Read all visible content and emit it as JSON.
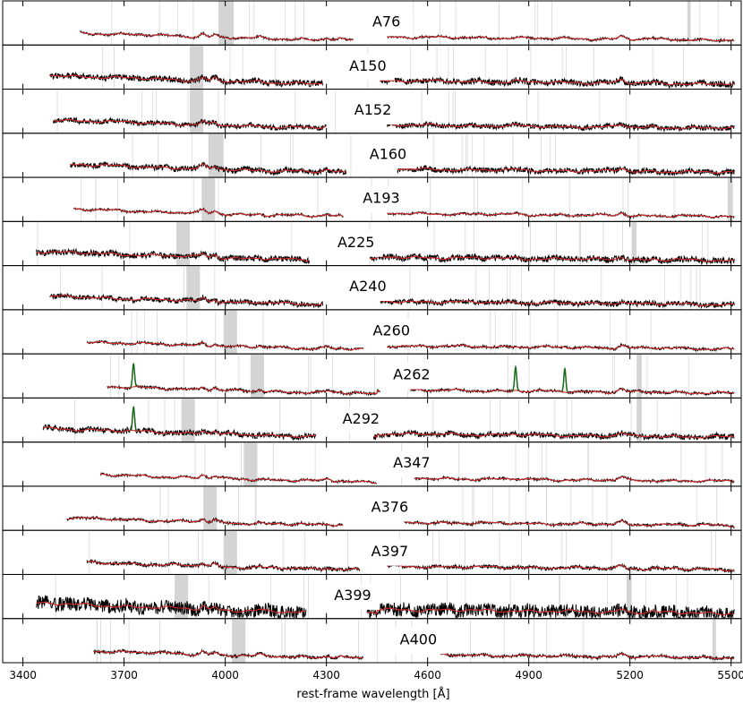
{
  "chart_data": {
    "type": "line",
    "xlabel": "rest-frame wavelength [Å]",
    "xlim": [
      3340,
      5530
    ],
    "x_ticks": [
      3400,
      3700,
      4000,
      4300,
      4600,
      4900,
      5200,
      5500
    ],
    "x_tick_labels": [
      "3400",
      "3700",
      "4000",
      "4300",
      "4600",
      "4900",
      "5200",
      "5500"
    ],
    "grid": false,
    "colors": {
      "spectrum": "#000000",
      "model": "#d62728",
      "emission": "#1a6b1a",
      "mask": "#bdbdbd"
    },
    "series": [
      {
        "name": "A76",
        "blue_range": [
          3570,
          4380
        ],
        "red_range": [
          4480,
          5510
        ],
        "noise": 0.15,
        "masks": [
          [
            3980,
            4025
          ],
          [
            5370,
            5380
          ]
        ],
        "emission": []
      },
      {
        "name": "A150",
        "blue_range": [
          3480,
          4290
        ],
        "red_range": [
          4460,
          5510
        ],
        "noise": 0.55,
        "masks": [
          [
            3895,
            3935
          ]
        ],
        "emission": []
      },
      {
        "name": "A152",
        "blue_range": [
          3490,
          4300
        ],
        "red_range": [
          4480,
          5510
        ],
        "noise": 0.45,
        "masks": [
          [
            3895,
            3935
          ]
        ],
        "emission": []
      },
      {
        "name": "A160",
        "blue_range": [
          3540,
          4360
        ],
        "red_range": [
          4510,
          5510
        ],
        "noise": 0.5,
        "masks": [
          [
            3950,
            3995
          ]
        ],
        "emission": []
      },
      {
        "name": "A193",
        "blue_range": [
          3550,
          4350
        ],
        "red_range": [
          4480,
          5510
        ],
        "noise": 0.15,
        "masks": [
          [
            3930,
            3970
          ],
          [
            5490,
            5505
          ]
        ],
        "emission": []
      },
      {
        "name": "A225",
        "blue_range": [
          3440,
          4250
        ],
        "red_range": [
          4430,
          5510
        ],
        "noise": 0.55,
        "masks": [
          [
            3855,
            3895
          ],
          [
            5205,
            5220
          ]
        ],
        "emission": []
      },
      {
        "name": "A240",
        "blue_range": [
          3480,
          4290
        ],
        "red_range": [
          4460,
          5510
        ],
        "noise": 0.45,
        "masks": [
          [
            3885,
            3925
          ]
        ],
        "emission": []
      },
      {
        "name": "A260",
        "blue_range": [
          3590,
          4410
        ],
        "red_range": [
          4480,
          5510
        ],
        "noise": 0.18,
        "masks": [
          [
            3995,
            4035
          ]
        ],
        "emission": []
      },
      {
        "name": "A262",
        "blue_range": [
          3650,
          4460
        ],
        "red_range": [
          4550,
          5510
        ],
        "noise": 0.2,
        "masks": [
          [
            4075,
            4115
          ],
          [
            5220,
            5235
          ]
        ],
        "emission": [
          3728,
          4861,
          5007
        ]
      },
      {
        "name": "A292",
        "blue_range": [
          3460,
          4270
        ],
        "red_range": [
          4440,
          5510
        ],
        "noise": 0.5,
        "masks": [
          [
            3870,
            3910
          ],
          [
            5220,
            5235
          ]
        ],
        "emission": [
          3728
        ]
      },
      {
        "name": "A347",
        "blue_range": [
          3630,
          4450
        ],
        "red_range": [
          4560,
          5510
        ],
        "noise": 0.15,
        "masks": [
          [
            4055,
            4095
          ]
        ],
        "emission": []
      },
      {
        "name": "A376",
        "blue_range": [
          3530,
          4350
        ],
        "red_range": [
          4530,
          5510
        ],
        "noise": 0.2,
        "masks": [
          [
            3935,
            3975
          ]
        ],
        "emission": []
      },
      {
        "name": "A397",
        "blue_range": [
          3590,
          4400
        ],
        "red_range": [
          4480,
          5510
        ],
        "noise": 0.3,
        "masks": [
          [
            3995,
            4035
          ]
        ],
        "emission": []
      },
      {
        "name": "A399",
        "blue_range": [
          3440,
          4240
        ],
        "red_range": [
          4420,
          5510
        ],
        "noise": 1.3,
        "masks": [
          [
            3850,
            3890
          ],
          [
            5190,
            5205
          ]
        ],
        "emission": []
      },
      {
        "name": "A400",
        "blue_range": [
          3610,
          4410
        ],
        "red_range": [
          4640,
          5510
        ],
        "noise": 0.22,
        "masks": [
          [
            4020,
            4060
          ],
          [
            5445,
            5455
          ]
        ],
        "emission": []
      }
    ]
  }
}
